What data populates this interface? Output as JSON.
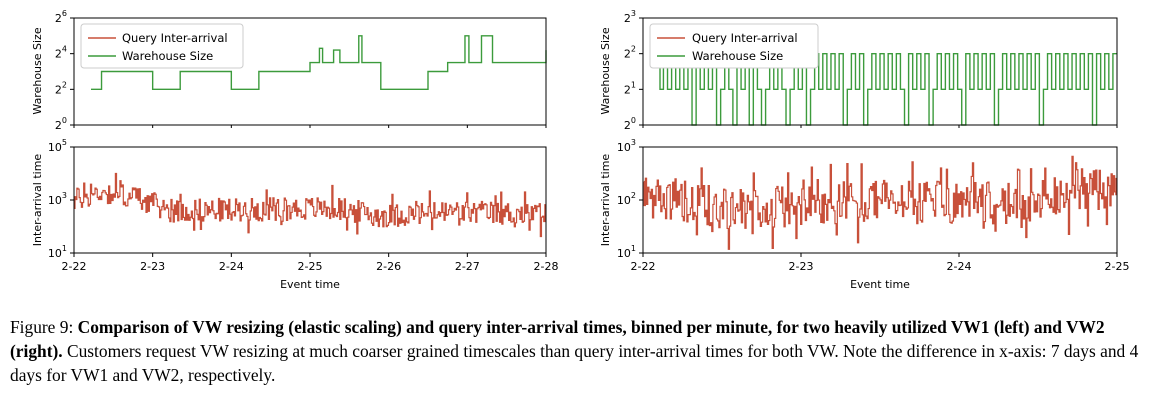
{
  "colors": {
    "inter_arrival": "#c8503a",
    "warehouse_size": "#3c9b3c",
    "axes": "#000000"
  },
  "caption": {
    "prefix": "Figure 9: ",
    "bold": "Comparison of VW resizing (elastic scaling) and query inter-arrival times, binned per minute, for two heavily utilized VW1 (left) and VW2 (right).",
    "rest": " Customers request VW resizing at much coarser grained timescales than query inter-arrival times for both VW. Note the difference in x-axis: 7 days and 4 days for VW1 and VW2, respectively."
  },
  "chart_data": [
    {
      "id": "vw1",
      "type": "line",
      "xlabel": "Event time",
      "x_ticks": [
        "2-22",
        "2-23",
        "2-24",
        "2-25",
        "2-26",
        "2-27",
        "2-28"
      ],
      "xlim": [
        0,
        6
      ],
      "legend": {
        "position": "top-left",
        "entries": [
          "Query Inter-arrival",
          "Warehouse Size"
        ]
      },
      "top": {
        "ylabel": "Warehouse Size",
        "yscale": "log2",
        "ylim": [
          0,
          6
        ],
        "y_ticks": [
          {
            "base": "2",
            "exp": "0"
          },
          {
            "base": "2",
            "exp": "2"
          },
          {
            "base": "2",
            "exp": "4"
          },
          {
            "base": "2",
            "exp": "6"
          }
        ],
        "series": [
          {
            "name": "Warehouse Size",
            "step_points": [
              [
                -0.4,
                2
              ],
              [
                0,
                2
              ],
              [
                0.35,
                3
              ],
              [
                1.0,
                2
              ],
              [
                1.35,
                3
              ],
              [
                2.0,
                2
              ],
              [
                2.35,
                3
              ],
              [
                3.0,
                3.5
              ],
              [
                3.12,
                4.3
              ],
              [
                3.16,
                3.5
              ],
              [
                3.3,
                4.2
              ],
              [
                3.38,
                3.5
              ],
              [
                3.58,
                3.5
              ],
              [
                3.62,
                5
              ],
              [
                3.66,
                3.5
              ],
              [
                3.9,
                2
              ],
              [
                4.5,
                3
              ],
              [
                4.75,
                3.5
              ],
              [
                4.93,
                3.5
              ],
              [
                4.97,
                5
              ],
              [
                5.02,
                3.5
              ],
              [
                5.18,
                5
              ],
              [
                5.32,
                3.5
              ],
              [
                5.95,
                3.5
              ],
              [
                6.0,
                4.2
              ],
              [
                6.03,
                3.5
              ],
              [
                6.5,
                3.5
              ]
            ]
          }
        ]
      },
      "bottom": {
        "ylabel": "Inter-arrival time",
        "yscale": "log10",
        "ylim": [
          1,
          5
        ],
        "y_ticks": [
          {
            "base": "10",
            "exp": "1"
          },
          {
            "base": "10",
            "exp": "3"
          },
          {
            "base": "10",
            "exp": "5"
          }
        ],
        "series": [
          {
            "name": "Query Inter-arrival",
            "profile_log10": [
              [
                -0.4,
                2.8
              ],
              [
                0,
                3.0
              ],
              [
                0.35,
                3.3
              ],
              [
                0.8,
                3.1
              ],
              [
                1.2,
                2.6
              ],
              [
                2.5,
                2.65
              ],
              [
                3.3,
                2.7
              ],
              [
                3.9,
                2.4
              ],
              [
                4.8,
                2.55
              ],
              [
                5.5,
                2.5
              ],
              [
                6.5,
                2.4
              ]
            ],
            "spread_log10": 0.55,
            "samples": 420
          }
        ]
      }
    },
    {
      "id": "vw2",
      "type": "line",
      "xlabel": "Event time",
      "x_ticks": [
        "2-22",
        "2-23",
        "2-24",
        "2-25"
      ],
      "xlim": [
        0,
        3
      ],
      "legend": {
        "position": "top-left",
        "entries": [
          "Query Inter-arrival",
          "Warehouse Size"
        ]
      },
      "top": {
        "ylabel": "Warehouse Size",
        "yscale": "log2",
        "ylim": [
          0,
          3
        ],
        "y_ticks": [
          {
            "base": "2",
            "exp": "0"
          },
          {
            "base": "2",
            "exp": "1"
          },
          {
            "base": "2",
            "exp": "2"
          },
          {
            "base": "2",
            "exp": "3"
          }
        ],
        "series": [
          {
            "name": "Warehouse Size",
            "step_values": [
              1,
              2,
              1,
              2,
              1,
              2,
              1,
              2,
              1,
              2,
              1,
              2,
              0,
              2,
              1,
              2,
              1,
              2,
              0,
              1,
              2,
              1,
              0,
              2,
              1,
              2,
              0,
              2,
              1,
              0,
              1,
              2,
              1,
              2,
              1,
              0,
              1,
              2,
              1,
              2,
              0,
              1,
              2,
              1,
              2,
              1,
              2,
              1,
              2,
              0,
              1,
              2,
              1,
              2,
              0,
              1,
              2,
              1,
              2,
              1,
              2,
              1,
              2,
              1,
              0,
              2,
              1,
              2,
              1,
              2,
              0,
              1,
              2,
              1,
              2,
              1,
              2,
              1,
              0,
              2,
              1,
              2,
              1,
              2,
              1,
              2,
              0,
              1,
              2,
              1,
              2,
              1,
              2,
              1,
              2,
              1,
              2,
              0,
              1,
              2,
              1,
              2,
              1,
              2,
              1,
              2,
              1,
              2,
              1,
              2,
              0,
              2,
              1,
              2,
              1,
              2
            ],
            "x_range": [
              0,
              3
            ]
          }
        ]
      },
      "bottom": {
        "ylabel": "Inter-arrival time",
        "yscale": "log10",
        "ylim": [
          1,
          3
        ],
        "y_ticks": [
          {
            "base": "10",
            "exp": "1"
          },
          {
            "base": "10",
            "exp": "2"
          },
          {
            "base": "10",
            "exp": "3"
          }
        ],
        "series": [
          {
            "name": "Query Inter-arrival",
            "profile_log10": [
              [
                0,
                2.1
              ],
              [
                0.3,
                1.9
              ],
              [
                0.6,
                1.85
              ],
              [
                1.0,
                1.9
              ],
              [
                1.5,
                2.0
              ],
              [
                2.0,
                1.95
              ],
              [
                2.5,
                1.95
              ],
              [
                2.75,
                2.2
              ],
              [
                3.0,
                2.15
              ]
            ],
            "spread_log10": 0.5,
            "samples": 400
          }
        ]
      }
    }
  ]
}
